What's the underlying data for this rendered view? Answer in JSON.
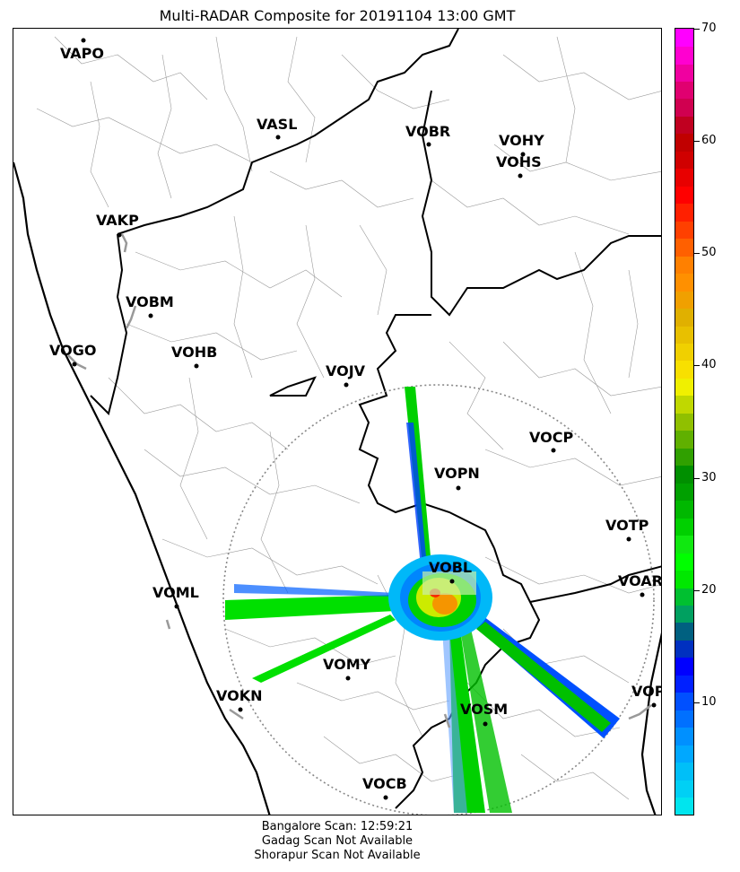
{
  "title": "Multi-RADAR Composite for 20191104 13:00 GMT",
  "footer": {
    "line1": "Bangalore Scan: 12:59:21",
    "line2": "Gadag Scan Not Available",
    "line3": "Shorapur Scan Not Available"
  },
  "colorbar": {
    "min": 0,
    "max": 70,
    "ticks": [
      "10",
      "20",
      "30",
      "40",
      "50",
      "60",
      "70"
    ],
    "colors": [
      "#00e5ee",
      "#00d0f5",
      "#00bff8",
      "#00a8ff",
      "#0090ff",
      "#0070ff",
      "#0050ff",
      "#0020ff",
      "#0000ff",
      "#0030c0",
      "#006080",
      "#00a060",
      "#00c030",
      "#00e800",
      "#00ff00",
      "#10e810",
      "#00d000",
      "#00b800",
      "#00a000",
      "#008f00",
      "#30a000",
      "#60b000",
      "#90c000",
      "#c0d800",
      "#f0f000",
      "#f8e000",
      "#f0d000",
      "#e8c000",
      "#e0b000",
      "#f0a000",
      "#ff9000",
      "#ff8000",
      "#ff6000",
      "#ff4000",
      "#ff2000",
      "#ff0000",
      "#e80000",
      "#d00000",
      "#c00000",
      "#c00020",
      "#d00050",
      "#e00070",
      "#f000a0",
      "#ff00d0",
      "#ff00ff"
    ]
  },
  "stations": [
    {
      "name": "VAPO"
    },
    {
      "name": "VASL"
    },
    {
      "name": "VOBR"
    },
    {
      "name": "VOHY"
    },
    {
      "name": "VOHS"
    },
    {
      "name": "VAKP"
    },
    {
      "name": "VOBM"
    },
    {
      "name": "VOGO"
    },
    {
      "name": "VOHB"
    },
    {
      "name": "VOJV"
    },
    {
      "name": "VOCP"
    },
    {
      "name": "VOPN"
    },
    {
      "name": "VOTP"
    },
    {
      "name": "VOBL"
    },
    {
      "name": "VOAR"
    },
    {
      "name": "VOML"
    },
    {
      "name": "VOMY"
    },
    {
      "name": "VOKN"
    },
    {
      "name": "VOPC"
    },
    {
      "name": "VOSM"
    },
    {
      "name": "VOCB"
    }
  ]
}
